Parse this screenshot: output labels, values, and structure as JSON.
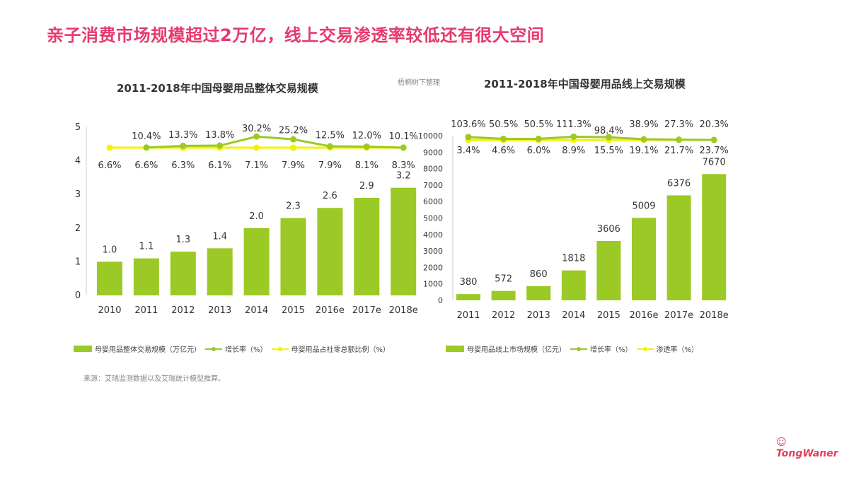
{
  "page_title": "亲子消费市场规模超过2万亿，线上交易渗透率较低还有很大空间",
  "note": "梧桐树下整理",
  "source": "来源：艾瑞监测数据以及艾瑞统计模型推算。",
  "logo_text": "童玩儿 TongWaner",
  "colors": {
    "bar": "#9bc925",
    "growth": "#9bc925",
    "share": "#f5f200",
    "title": "#e63a6e"
  },
  "chart_data": [
    {
      "type": "bar+line",
      "title": "2011-2018年中国母婴用品整体交易规模",
      "categories": [
        "2010",
        "2011",
        "2012",
        "2013",
        "2014",
        "2015",
        "2016e",
        "2017e",
        "2018e"
      ],
      "ylim": [
        0,
        5
      ],
      "yticks": [
        "0",
        "1",
        "2",
        "3",
        "4",
        "5"
      ],
      "series": [
        {
          "name": "母婴用品整体交易规模（万亿元）",
          "kind": "bar",
          "values": [
            1.0,
            1.1,
            1.3,
            1.4,
            2.0,
            2.3,
            2.6,
            2.9,
            3.2
          ],
          "labels": [
            "1.0",
            "1.1",
            "1.3",
            "1.4",
            "2.0",
            "2.3",
            "2.6",
            "2.9",
            "3.2"
          ]
        },
        {
          "name": "增长率（%）",
          "kind": "line",
          "values": [
            null,
            10.4,
            13.3,
            13.8,
            30.2,
            25.2,
            12.5,
            12.0,
            10.1
          ],
          "labels": [
            "",
            "10.4%",
            "13.3%",
            "13.8%",
            "30.2%",
            "25.2%",
            "12.5%",
            "12.0%",
            "10.1%"
          ]
        },
        {
          "name": "母婴用品占社零总额比例（%）",
          "kind": "line",
          "values": [
            6.6,
            6.6,
            6.3,
            6.1,
            7.1,
            7.9,
            7.9,
            8.1,
            8.3
          ],
          "labels": [
            "6.6%",
            "6.6%",
            "6.3%",
            "6.1%",
            "7.1%",
            "7.9%",
            "7.9%",
            "8.1%",
            "8.3%"
          ]
        }
      ]
    },
    {
      "type": "bar+line",
      "title": "2011-2018年中国母婴用品线上交易规模",
      "categories": [
        "2011",
        "2012",
        "2013",
        "2014",
        "2015",
        "2016e",
        "2017e",
        "2018e"
      ],
      "ylim": [
        0,
        10000
      ],
      "yticks": [
        "0",
        "1000",
        "2000",
        "3000",
        "4000",
        "5000",
        "6000",
        "7000",
        "8000",
        "9000",
        "10000"
      ],
      "series": [
        {
          "name": "母婴用品线上市场规模（亿元）",
          "kind": "bar",
          "values": [
            380,
            572,
            860,
            1818,
            3606,
            5009,
            6376,
            7670
          ],
          "labels": [
            "380",
            "572",
            "860",
            "1818",
            "3606",
            "5009",
            "6376",
            "7670"
          ]
        },
        {
          "name": "增长率（%）",
          "kind": "line",
          "values": [
            103.6,
            50.5,
            50.5,
            111.3,
            98.4,
            38.9,
            27.3,
            20.3
          ],
          "labels": [
            "103.6%",
            "50.5%",
            "50.5%",
            "111.3%",
            "98.4%",
            "38.9%",
            "27.3%",
            "20.3%"
          ]
        },
        {
          "name": "渗透率（%）",
          "kind": "line",
          "values": [
            3.4,
            4.6,
            6.0,
            8.9,
            15.5,
            19.1,
            21.7,
            23.7
          ],
          "labels": [
            "3.4%",
            "4.6%",
            "6.0%",
            "8.9%",
            "15.5%",
            "19.1%",
            "21.7%",
            "23.7%"
          ]
        }
      ]
    }
  ]
}
